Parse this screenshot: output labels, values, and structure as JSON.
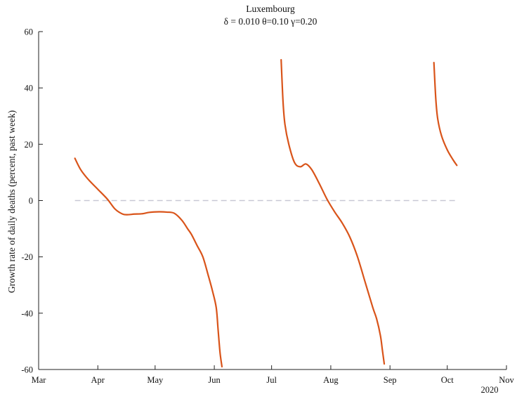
{
  "chart_data": {
    "type": "line",
    "title": "Luxembourg",
    "subtitle": "δ = 0.010  θ=0.10  γ=0.20",
    "xlabel": "",
    "ylabel": "Growth rate of daily deaths (percent, past week)",
    "year_label": "2020",
    "xlim": [
      "2020-03-01",
      "2020-11-01"
    ],
    "ylim": [
      -60,
      60
    ],
    "x_ticks": [
      {
        "date": "2020-03-01",
        "label": "Mar"
      },
      {
        "date": "2020-04-01",
        "label": "Apr"
      },
      {
        "date": "2020-05-01",
        "label": "May"
      },
      {
        "date": "2020-06-01",
        "label": "Jun"
      },
      {
        "date": "2020-07-01",
        "label": "Jul"
      },
      {
        "date": "2020-08-01",
        "label": "Aug"
      },
      {
        "date": "2020-09-01",
        "label": "Sep"
      },
      {
        "date": "2020-10-01",
        "label": "Oct"
      },
      {
        "date": "2020-11-01",
        "label": "Nov"
      }
    ],
    "y_ticks": [
      {
        "value": 60,
        "label": "60"
      },
      {
        "value": 40,
        "label": "40"
      },
      {
        "value": 20,
        "label": "20"
      },
      {
        "value": 0,
        "label": "0"
      },
      {
        "value": -20,
        "label": "-20"
      },
      {
        "value": -40,
        "label": "-40"
      },
      {
        "value": -60,
        "label": "-60"
      }
    ],
    "reference_line": {
      "y": 0,
      "x_start": "2020-03-20",
      "x_end": "2020-10-06",
      "color": "#c8c8d4",
      "style": "dashed"
    },
    "grid": false,
    "series_color": "#d9541a",
    "series": [
      {
        "segments": [
          {
            "x": [
              "2020-03-20",
              "2020-03-23",
              "2020-03-27",
              "2020-04-01",
              "2020-04-06",
              "2020-04-10",
              "2020-04-14",
              "2020-04-17",
              "2020-04-20",
              "2020-04-24",
              "2020-04-28",
              "2020-05-03",
              "2020-05-07",
              "2020-05-11",
              "2020-05-15",
              "2020-05-18",
              "2020-05-20",
              "2020-05-23",
              "2020-05-26",
              "2020-05-29",
              "2020-05-31",
              "2020-06-02",
              "2020-06-03",
              "2020-06-04",
              "2020-06-05"
            ],
            "y": [
              15,
              11,
              7.5,
              4,
              0.5,
              -3,
              -4.8,
              -5,
              -4.8,
              -4.7,
              -4.2,
              -4,
              -4.1,
              -4.5,
              -7,
              -10,
              -12,
              -16,
              -20,
              -27,
              -32,
              -38,
              -46,
              -54,
              -59
            ]
          },
          {
            "x": [
              "2020-07-06",
              "2020-07-07",
              "2020-07-08",
              "2020-07-10",
              "2020-07-13",
              "2020-07-16",
              "2020-07-19",
              "2020-07-22",
              "2020-07-26",
              "2020-07-30",
              "2020-08-03",
              "2020-08-07",
              "2020-08-11",
              "2020-08-15",
              "2020-08-19",
              "2020-08-23",
              "2020-08-25",
              "2020-08-27",
              "2020-08-28",
              "2020-08-29"
            ],
            "y": [
              50,
              35,
              27,
              20,
              13.5,
              12,
              13,
              11,
              6,
              0.5,
              -4,
              -8,
              -13,
              -20,
              -29,
              -38,
              -42,
              -48,
              -53,
              -58
            ]
          },
          {
            "x": [
              "2020-09-24",
              "2020-09-25",
              "2020-09-26",
              "2020-09-28",
              "2020-10-01",
              "2020-10-04",
              "2020-10-06"
            ],
            "y": [
              49,
              36,
              29,
              23,
              18,
              14.5,
              12.5
            ]
          }
        ]
      }
    ]
  }
}
